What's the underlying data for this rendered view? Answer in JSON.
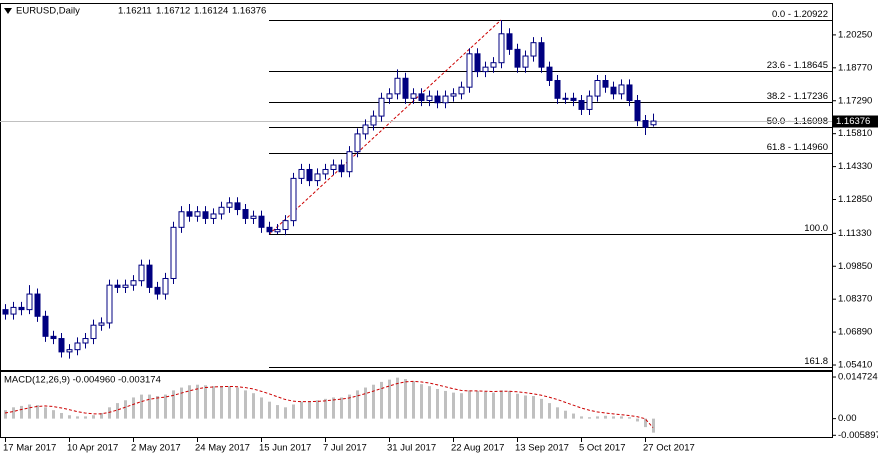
{
  "chart_data": {
    "type": "candlestick",
    "symbol": "EURUSD,Daily",
    "header_values": [
      1.16211,
      1.16712,
      1.16124,
      1.16376
    ],
    "categories": [
      "17 Mar 2017",
      null,
      null,
      null,
      null,
      null,
      null,
      null,
      "10 Apr 2017",
      null,
      null,
      null,
      null,
      null,
      null,
      null,
      "2 May 2017",
      null,
      null,
      null,
      null,
      null,
      null,
      null,
      "24 May 2017",
      null,
      null,
      null,
      null,
      null,
      null,
      null,
      "15 Jun 2017",
      null,
      null,
      null,
      null,
      null,
      null,
      null,
      "7 Jul 2017",
      null,
      null,
      null,
      null,
      null,
      null,
      null,
      "31 Jul 2017",
      null,
      null,
      null,
      null,
      null,
      null,
      null,
      "22 Aug 2017",
      null,
      null,
      null,
      null,
      null,
      null,
      null,
      "13 Sep 2017",
      null,
      null,
      null,
      null,
      null,
      null,
      null,
      "5 Oct 2017",
      null,
      null,
      null,
      null,
      null,
      null,
      null,
      "27 Oct 2017",
      null
    ],
    "candles": [
      [
        1.079,
        1.0815,
        1.0745,
        1.077
      ],
      [
        1.077,
        1.0825,
        1.0745,
        1.08
      ],
      [
        1.08,
        1.0825,
        1.0765,
        1.079
      ],
      [
        1.079,
        1.09,
        1.077,
        1.086
      ],
      [
        1.086,
        1.0885,
        1.0735,
        1.076
      ],
      [
        1.076,
        1.0785,
        1.0645,
        1.067
      ],
      [
        1.067,
        1.0695,
        1.0635,
        1.066
      ],
      [
        1.066,
        1.0685,
        1.0575,
        1.06
      ],
      [
        1.06,
        1.0635,
        1.057,
        1.061
      ],
      [
        1.061,
        1.0665,
        1.0585,
        1.064
      ],
      [
        1.064,
        1.0685,
        1.0615,
        1.066
      ],
      [
        1.066,
        1.0745,
        1.0635,
        1.072
      ],
      [
        1.072,
        1.0755,
        1.0695,
        1.073
      ],
      [
        1.073,
        1.0925,
        1.0705,
        1.09
      ],
      [
        1.09,
        1.0925,
        1.0865,
        1.089
      ],
      [
        1.089,
        1.0925,
        1.0865,
        1.09
      ],
      [
        1.09,
        1.0945,
        1.0875,
        1.092
      ],
      [
        1.092,
        1.1015,
        1.0895,
        1.099
      ],
      [
        1.099,
        1.1015,
        1.0865,
        1.089
      ],
      [
        1.089,
        1.0915,
        1.0835,
        1.086
      ],
      [
        1.086,
        1.0955,
        1.0835,
        1.093
      ],
      [
        1.093,
        1.1185,
        1.0905,
        1.116
      ],
      [
        1.116,
        1.1255,
        1.1135,
        1.123
      ],
      [
        1.123,
        1.1265,
        1.1185,
        1.121
      ],
      [
        1.121,
        1.1255,
        1.1185,
        1.123
      ],
      [
        1.123,
        1.1255,
        1.1175,
        1.12
      ],
      [
        1.12,
        1.1245,
        1.1175,
        1.122
      ],
      [
        1.122,
        1.1275,
        1.1195,
        1.125
      ],
      [
        1.125,
        1.1295,
        1.1225,
        1.127
      ],
      [
        1.127,
        1.1295,
        1.1215,
        1.124
      ],
      [
        1.124,
        1.1265,
        1.1175,
        1.12
      ],
      [
        1.12,
        1.1235,
        1.1175,
        1.121
      ],
      [
        1.121,
        1.1235,
        1.1135,
        1.116
      ],
      [
        1.116,
        1.1185,
        1.1128,
        1.114
      ],
      [
        1.114,
        1.1175,
        1.113,
        1.115
      ],
      [
        1.115,
        1.1215,
        1.1125,
        1.119
      ],
      [
        1.119,
        1.1405,
        1.1165,
        1.138
      ],
      [
        1.138,
        1.1445,
        1.1355,
        1.142
      ],
      [
        1.142,
        1.1445,
        1.1345,
        1.137
      ],
      [
        1.137,
        1.1425,
        1.1345,
        1.14
      ],
      [
        1.14,
        1.1445,
        1.1375,
        1.142
      ],
      [
        1.142,
        1.1465,
        1.1395,
        1.144
      ],
      [
        1.144,
        1.1465,
        1.1385,
        1.141
      ],
      [
        1.141,
        1.1525,
        1.1385,
        1.15
      ],
      [
        1.15,
        1.1605,
        1.1475,
        1.158
      ],
      [
        1.158,
        1.1645,
        1.1555,
        1.162
      ],
      [
        1.162,
        1.1685,
        1.1595,
        1.166
      ],
      [
        1.166,
        1.1765,
        1.1635,
        1.174
      ],
      [
        1.174,
        1.1785,
        1.1715,
        1.176
      ],
      [
        1.176,
        1.187,
        1.1735,
        1.183
      ],
      [
        1.183,
        1.1855,
        1.1715,
        1.174
      ],
      [
        1.174,
        1.1785,
        1.1715,
        1.176
      ],
      [
        1.176,
        1.1785,
        1.1705,
        1.173
      ],
      [
        1.173,
        1.1775,
        1.1705,
        1.175
      ],
      [
        1.175,
        1.1775,
        1.1695,
        1.172
      ],
      [
        1.172,
        1.1775,
        1.1695,
        1.175
      ],
      [
        1.175,
        1.1785,
        1.1725,
        1.176
      ],
      [
        1.176,
        1.1815,
        1.1735,
        1.179
      ],
      [
        1.179,
        1.1965,
        1.1765,
        1.194
      ],
      [
        1.194,
        1.1965,
        1.1835,
        1.186
      ],
      [
        1.186,
        1.1905,
        1.1835,
        1.188
      ],
      [
        1.188,
        1.1925,
        1.1855,
        1.19
      ],
      [
        1.19,
        1.20922,
        1.1875,
        1.203
      ],
      [
        1.203,
        1.2055,
        1.1935,
        1.196
      ],
      [
        1.196,
        1.1985,
        1.1855,
        1.188
      ],
      [
        1.188,
        1.1955,
        1.1855,
        1.193
      ],
      [
        1.193,
        1.2015,
        1.1905,
        1.199
      ],
      [
        1.199,
        1.2015,
        1.1855,
        1.188
      ],
      [
        1.188,
        1.1905,
        1.1795,
        1.182
      ],
      [
        1.182,
        1.1845,
        1.1715,
        1.174
      ],
      [
        1.174,
        1.1765,
        1.1715,
        1.174
      ],
      [
        1.174,
        1.1765,
        1.1705,
        1.173
      ],
      [
        1.173,
        1.1755,
        1.1665,
        1.169
      ],
      [
        1.169,
        1.1775,
        1.1665,
        1.175
      ],
      [
        1.175,
        1.1845,
        1.1725,
        1.182
      ],
      [
        1.182,
        1.1845,
        1.1765,
        1.179
      ],
      [
        1.179,
        1.1815,
        1.1735,
        1.176
      ],
      [
        1.176,
        1.1825,
        1.1735,
        1.18
      ],
      [
        1.18,
        1.1825,
        1.1705,
        1.173
      ],
      [
        1.173,
        1.1755,
        1.1615,
        1.164
      ],
      [
        1.164,
        1.1665,
        1.1575,
        1.161
      ],
      [
        1.16211,
        1.16712,
        1.16124,
        1.16376
      ]
    ],
    "ylim": [
      1.05186,
      1.21639
    ],
    "yticks": [
      {
        "value": 1.2025,
        "label": "1.20250"
      },
      {
        "value": 1.1877,
        "label": "1.18770"
      },
      {
        "value": 1.1729,
        "label": "1.17290"
      },
      {
        "value": 1.1581,
        "label": "1.15810"
      },
      {
        "value": 1.1433,
        "label": "1.14330"
      },
      {
        "value": 1.1285,
        "label": "1.12850"
      },
      {
        "value": 1.1133,
        "label": "1.11330"
      },
      {
        "value": 1.0985,
        "label": "1.09850"
      },
      {
        "value": 1.0837,
        "label": "1.08370"
      },
      {
        "value": 1.0689,
        "label": "1.06890"
      },
      {
        "value": 1.0541,
        "label": "1.05410"
      }
    ],
    "fibonacci": [
      {
        "label": "0.0 - 1.20922",
        "value": 1.20922
      },
      {
        "label": "23.6 - 1.18645",
        "value": 1.18645
      },
      {
        "label": "38.2 - 1.17236",
        "value": 1.17236
      },
      {
        "label": "50.0 - 1.16098",
        "value": 1.16098
      },
      {
        "label": "61.8 - 1.14960",
        "value": 1.1496
      },
      {
        "label": "100.0",
        "value": 1.1128
      },
      {
        "label": "161.8",
        "value": 1.0532
      }
    ],
    "bull_color": "#ffffff",
    "bear_color": "#000080",
    "line_color": "#000080",
    "trend_color": "#cc0000",
    "price_line_color": "#c0c0c0",
    "macd": {
      "label": "MACD(12,26,9) -0.004960 -0.003174",
      "ylim": [
        -0.0065,
        0.0165
      ],
      "yticks": [
        0.014724,
        {
          "value": 0,
          "label": "0.00"
        },
        -0.005897
      ],
      "histogram": [
        0.003,
        0.004,
        0.0045,
        0.005,
        0.0048,
        0.004,
        0.003,
        0.002,
        0.0012,
        0.0008,
        0.0008,
        0.0012,
        0.002,
        0.004,
        0.0055,
        0.0065,
        0.0075,
        0.0085,
        0.0085,
        0.008,
        0.0085,
        0.01,
        0.011,
        0.0118,
        0.012,
        0.0118,
        0.0115,
        0.0115,
        0.0115,
        0.011,
        0.01,
        0.009,
        0.0075,
        0.006,
        0.0048,
        0.004,
        0.005,
        0.006,
        0.0062,
        0.0065,
        0.007,
        0.0075,
        0.0075,
        0.0085,
        0.01,
        0.011,
        0.012,
        0.013,
        0.0138,
        0.0145,
        0.014,
        0.0132,
        0.0122,
        0.0115,
        0.0105,
        0.0098,
        0.0092,
        0.009,
        0.01,
        0.0098,
        0.0095,
        0.0092,
        0.01,
        0.0098,
        0.0088,
        0.0082,
        0.008,
        0.007,
        0.0055,
        0.004,
        0.0028,
        0.0018,
        0.0008,
        0.0005,
        0.0008,
        0.001,
        0.0008,
        0.0008,
        0.0005,
        -0.001,
        -0.003,
        -0.00496
      ],
      "signal": [
        0.002,
        0.0025,
        0.0032,
        0.0038,
        0.0043,
        0.0045,
        0.0043,
        0.0038,
        0.0032,
        0.0025,
        0.002,
        0.0017,
        0.0017,
        0.0022,
        0.003,
        0.004,
        0.005,
        0.006,
        0.0068,
        0.0073,
        0.0076,
        0.0082,
        0.009,
        0.0098,
        0.0105,
        0.011,
        0.0112,
        0.0113,
        0.0114,
        0.0113,
        0.011,
        0.0105,
        0.0097,
        0.0088,
        0.0078,
        0.0068,
        0.0062,
        0.006,
        0.006,
        0.0061,
        0.0063,
        0.0066,
        0.0069,
        0.0073,
        0.008,
        0.0088,
        0.0097,
        0.0106,
        0.0115,
        0.0124,
        0.013,
        0.0132,
        0.013,
        0.0126,
        0.012,
        0.0113,
        0.0106,
        0.01,
        0.0098,
        0.0098,
        0.0097,
        0.0096,
        0.0097,
        0.0097,
        0.0095,
        0.0092,
        0.0088,
        0.0083,
        0.0076,
        0.0068,
        0.0058,
        0.0048,
        0.0038,
        0.003,
        0.0024,
        0.002,
        0.0017,
        0.0014,
        0.0011,
        0.0007,
        0.0,
        -0.003174
      ],
      "hist_color": "#c0c0c0",
      "signal_color": "#cc0000"
    }
  }
}
